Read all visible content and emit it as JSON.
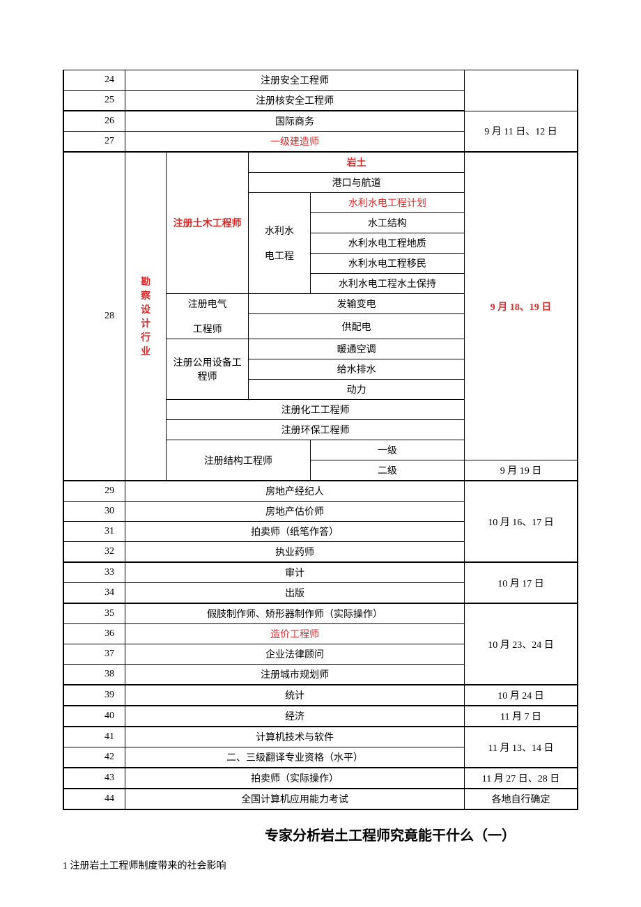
{
  "rows_top": [
    {
      "num": "24",
      "name": "注册安全工程师",
      "date": "",
      "red": false
    },
    {
      "num": "25",
      "name": "注册核安全工程师",
      "date": "",
      "red": false
    },
    {
      "num": "26",
      "name": "国际商务",
      "date": "9 月 11 日、12 日",
      "red": false
    },
    {
      "num": "27",
      "name": "一级建造师",
      "date": "",
      "red": true
    }
  ],
  "row28": {
    "num": "28",
    "industry": "勘察设计行业",
    "date_main": "9 月 18、19 日",
    "date_sub": "9 月 19 日",
    "civil_label": "注册土木工程师",
    "civil_yantu": "岩土",
    "civil_port": "港口与航道",
    "civil_water_label1": "水利水",
    "civil_water_label2": "电工程",
    "civil_water_items": [
      "水利水电工程计划",
      "水工结构",
      "水利水电工程地质",
      "水利水电工程移民",
      "水利水电工程水土保持"
    ],
    "elec_label1": "注册电气",
    "elec_label2": "工程师",
    "elec_items": [
      "发输变电",
      "供配电"
    ],
    "public_label1": "注册公用设备工",
    "public_label2": "程师",
    "public_items": [
      "暖通空调",
      "给水排水",
      "动力"
    ],
    "chem": "注册化工工程师",
    "env": "注册环保工程师",
    "struct_label": "注册结构工程师",
    "struct_items": [
      "一级",
      "二级"
    ]
  },
  "rows_bottom": [
    {
      "num": "29",
      "name": "房地产经纪人",
      "date": "10 月 16、17 日",
      "date_span": 4,
      "red": false
    },
    {
      "num": "30",
      "name": "房地产估价师",
      "red": false
    },
    {
      "num": "31",
      "name": "拍卖师（纸笔作答）",
      "red": false
    },
    {
      "num": "32",
      "name": "执业药师",
      "red": false
    },
    {
      "num": "33",
      "name": "审计",
      "date": "10 月 17 日",
      "date_span": 2,
      "red": false
    },
    {
      "num": "34",
      "name": "出版",
      "red": false
    },
    {
      "num": "35",
      "name": "假肢制作师、矫形器制作师（实际操作）",
      "date": "10 月 23、24 日",
      "date_span": 4,
      "red": false
    },
    {
      "num": "36",
      "name": "造价工程师",
      "red": true
    },
    {
      "num": "37",
      "name": "企业法律顾问",
      "red": false
    },
    {
      "num": "38",
      "name": "注册城市规划师",
      "red": false
    },
    {
      "num": "39",
      "name": "统计",
      "date": "10 月 24 日",
      "date_span": 1,
      "red": false
    },
    {
      "num": "40",
      "name": "经济",
      "date": "11 月 7 日",
      "date_span": 1,
      "red": false
    },
    {
      "num": "41",
      "name": "计算机技术与软件",
      "date": "11 月 13、14 日",
      "date_span": 2,
      "red": false
    },
    {
      "num": "42",
      "name": "二、三级翻译专业资格（水平）",
      "red": false
    },
    {
      "num": "43",
      "name": "拍卖师（实际操作）",
      "date": "11 月 27 日、28 日",
      "date_span": 1,
      "red": false
    },
    {
      "num": "44",
      "name": "全国计算机应用能力考试",
      "date": "各地自行确定",
      "date_span": 1,
      "red": false
    }
  ],
  "heading": "专家分析岩土工程师究竟能干什么（一）",
  "sub": "1 注册岩土工程师制度带来的社会影响"
}
